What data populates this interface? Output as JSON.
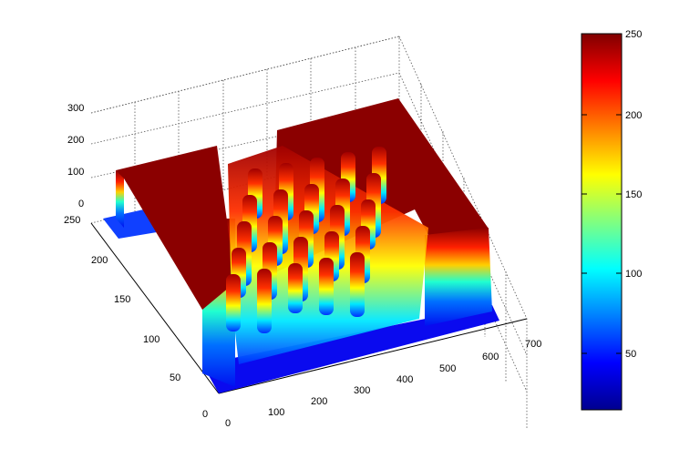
{
  "chart_data": {
    "type": "surface",
    "title": "",
    "xlabel": "",
    "ylabel": "",
    "zlabel": "",
    "xlim": [
      0,
      700
    ],
    "ylim": [
      0,
      250
    ],
    "zlim": [
      0,
      300
    ],
    "x_ticks": [
      "0",
      "100",
      "200",
      "300",
      "400",
      "500",
      "600",
      "700"
    ],
    "y_ticks": [
      "0",
      "50",
      "100",
      "150",
      "200",
      "250"
    ],
    "z_ticks": [
      "0",
      "100",
      "200",
      "300"
    ],
    "grid": true,
    "colormap": "jet",
    "colorbar": {
      "range": [
        14,
        250
      ],
      "ticks": [
        "50",
        "100",
        "150",
        "200",
        "250"
      ]
    },
    "surface_regions": [
      {
        "name": "floor",
        "x": [
          0,
          620
        ],
        "y": [
          0,
          250
        ],
        "z": 20
      },
      {
        "name": "left plateau",
        "x": [
          10,
          170
        ],
        "y": [
          55,
          225
        ],
        "z": 250
      },
      {
        "name": "right plateau",
        "x": [
          290,
          620
        ],
        "y": [
          20,
          250
        ],
        "z": 250
      },
      {
        "name": "bumps",
        "x": [
          170,
          450
        ],
        "y": [
          70,
          215
        ],
        "z": 200
      }
    ]
  },
  "colors": {
    "jet": [
      "#00008f",
      "#0000ff",
      "#0080ff",
      "#00ffff",
      "#80ff80",
      "#ffff00",
      "#ff8000",
      "#ff0000",
      "#800000"
    ],
    "plateau_top": "#8b0000",
    "floor": "#0a0aef"
  }
}
